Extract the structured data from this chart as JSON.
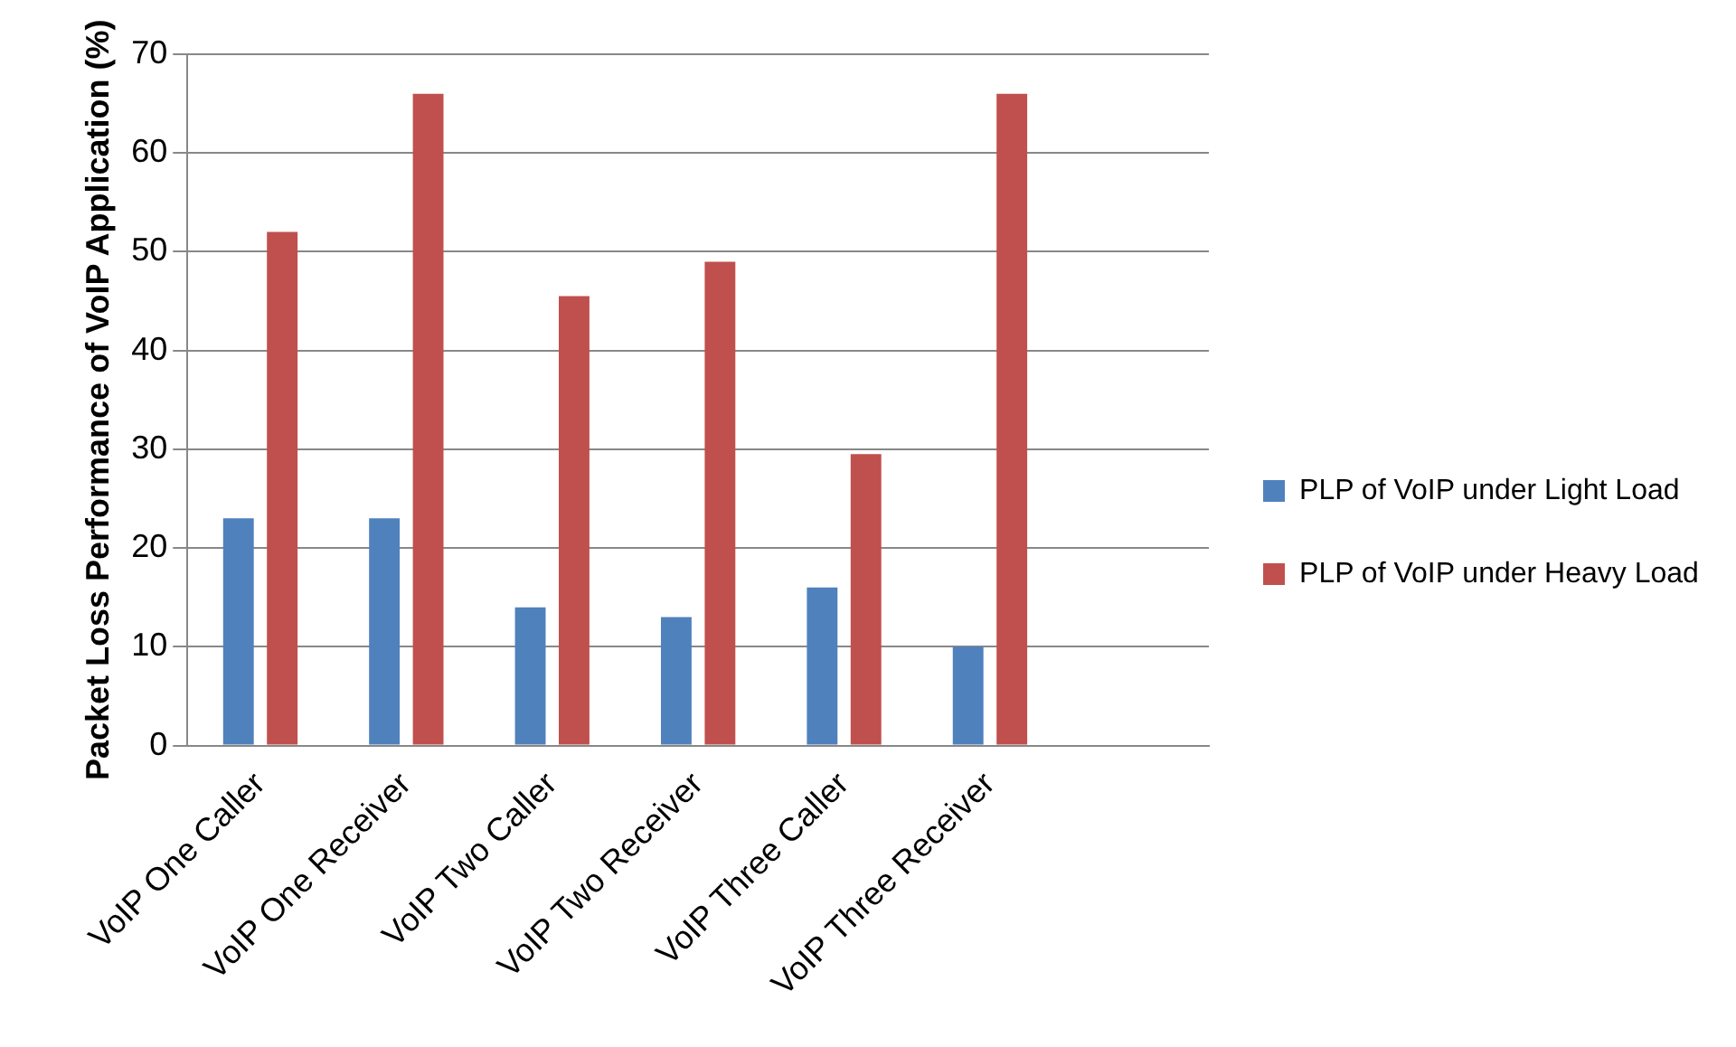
{
  "chart_data": {
    "type": "bar",
    "ylabel": "Packet Loss Performance of VoIP Application (%)",
    "categories": [
      "VoIP One Caller",
      "VoIP One Receiver",
      "VoIP Two Caller",
      "VoIP Two Receiver",
      "VoIP Three Caller",
      "VoIP Three Receiver",
      null
    ],
    "series": [
      {
        "name": "PLP of VoIP under Light Load",
        "color": "#4f81bd",
        "values": [
          23,
          23,
          14,
          13,
          16,
          10,
          null
        ]
      },
      {
        "name": "PLP of VoIP under Heavy Load",
        "color": "#c0504d",
        "values": [
          52,
          66,
          45.5,
          49,
          29.5,
          66,
          null
        ]
      }
    ],
    "ylim": [
      0,
      70
    ],
    "yticks": [
      0,
      10,
      20,
      30,
      40,
      50,
      60,
      70
    ],
    "grid": "y",
    "legend": "right"
  }
}
